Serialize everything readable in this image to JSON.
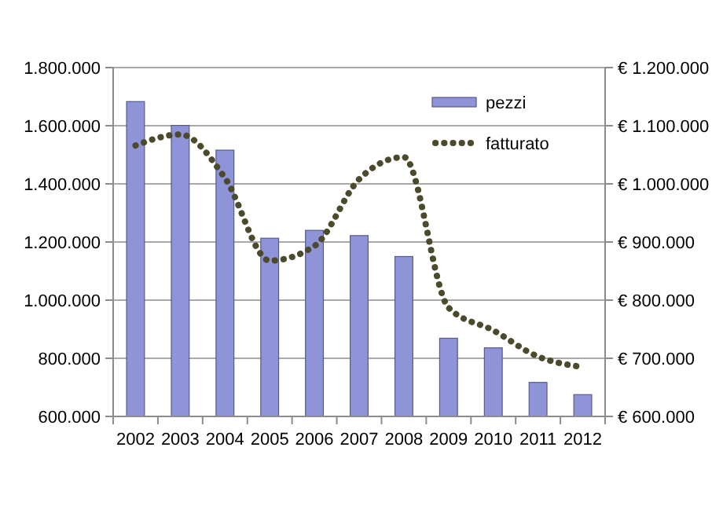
{
  "chart_data": {
    "type": "bar",
    "categories": [
      "2002",
      "2003",
      "2004",
      "2005",
      "2006",
      "2007",
      "2008",
      "2009",
      "2010",
      "2011",
      "2012"
    ],
    "series": [
      {
        "name": "pezzi",
        "color": "#8f94d8",
        "values": [
          1683000,
          1601000,
          1516000,
          1213000,
          1240000,
          1222000,
          1150000,
          869000,
          836000,
          717000,
          675000
        ]
      },
      {
        "name": "fatturato",
        "type": "line",
        "axis": "y2",
        "color": "#4b4a2c",
        "line_style": "dotted",
        "values": [
          1066000,
          1085000,
          1010000,
          868000,
          893000,
          1008000,
          1046000,
          787000,
          748000,
          703000,
          685000
        ]
      }
    ],
    "ylim": [
      600000,
      1800000
    ],
    "yticks": [
      {
        "value": 600000,
        "label": "600.000"
      },
      {
        "value": 800000,
        "label": "800.000"
      },
      {
        "value": 1000000,
        "label": "1.000.000"
      },
      {
        "value": 1200000,
        "label": "1.200.000"
      },
      {
        "value": 1400000,
        "label": "1.400.000"
      },
      {
        "value": 1600000,
        "label": "1.600.000"
      },
      {
        "value": 1800000,
        "label": "1.800.000"
      }
    ],
    "y2lim": [
      600000,
      1200000
    ],
    "y2ticks": [
      {
        "value": 600000,
        "label": "€ 600.000"
      },
      {
        "value": 700000,
        "label": "€ 700.000"
      },
      {
        "value": 800000,
        "label": "€ 800.000"
      },
      {
        "value": 900000,
        "label": "€ 900.000"
      },
      {
        "value": 1000000,
        "label": "€ 1.000.000"
      },
      {
        "value": 1100000,
        "label": "€ 1.100.000"
      },
      {
        "value": 1200000,
        "label": "€ 1.200.000"
      }
    ],
    "grid": "y",
    "legend": "top right"
  }
}
